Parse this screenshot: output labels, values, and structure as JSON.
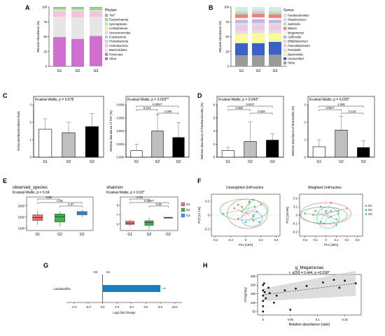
{
  "panels": {
    "A": {
      "letter": "A",
      "ylabel": "Relative Abundance (%)",
      "legend_title": "Phylum"
    },
    "B": {
      "letter": "B",
      "ylabel": "Relative Abundance (%)",
      "legend_title": "Genus"
    },
    "C": {
      "letter": "C"
    },
    "D": {
      "letter": "D"
    },
    "E": {
      "letter": "E"
    },
    "F": {
      "letter": "F",
      "left_title": "Unweighted UniFraction",
      "right_title": "Weighted UniFraction",
      "left_xlabel": "PC1 [16%]",
      "left_ylabel": "PC2 [12.1%]",
      "right_xlabel": "PC1 [35%]",
      "right_ylabel": "PC2 [18.9%]"
    },
    "G": {
      "letter": "G",
      "group_left": "G3",
      "group_right": "G1"
    },
    "H": {
      "letter": "H",
      "title": "g_Megamonas",
      "stat": "r_s[20] = 0.444, p =0.038*",
      "xlabel": "Relative abundance (ratio)",
      "ylabel": "CH4(g/day)"
    }
  },
  "chart_data": [
    {
      "id": "A",
      "type": "bar",
      "stacked": true,
      "categories": [
        "G1",
        "G2",
        "G3"
      ],
      "ylim": [
        0,
        100
      ],
      "yticks": [
        0,
        25,
        50,
        75,
        100
      ],
      "ylabel": "Relative Abundance (%)",
      "legend_title": "Phylum",
      "series": [
        {
          "name": "Other",
          "color": "#8c8c8c",
          "values": [
            0.3,
            0.3,
            0.3
          ]
        },
        {
          "name": "Firmicutes",
          "color": "#cf6fcf",
          "values": [
            49,
            46,
            51
          ]
        },
        {
          "name": "Bacteroidetes",
          "color": "#e6e6e6",
          "values": [
            34,
            36,
            32
          ]
        },
        {
          "name": "Actinobacteria",
          "color": "#fabfe3",
          "values": [
            8,
            9,
            7
          ]
        },
        {
          "name": "Proteobacteria",
          "color": "#d0d0d0",
          "values": [
            1.5,
            1.5,
            1.5
          ]
        },
        {
          "name": "Fusobacteria",
          "color": "#b0e0b0",
          "values": [
            1,
            1,
            1
          ]
        },
        {
          "name": "Verrucomicrobia",
          "color": "#f5d7ef",
          "values": [
            0.6,
            0.6,
            0.6
          ]
        },
        {
          "name": "Lentisphaerae",
          "color": "#fff0a0",
          "values": [
            0.6,
            0.6,
            0.6
          ]
        },
        {
          "name": "Synergistetes",
          "color": "#c4e8a0",
          "values": [
            0.5,
            0.5,
            0.5
          ]
        },
        {
          "name": "Euryarchaeota",
          "color": "#9ad29a",
          "values": [
            2.5,
            2.5,
            3.5
          ]
        },
        {
          "name": "TM7",
          "color": "#80c880",
          "values": [
            2,
            2,
            2
          ]
        }
      ]
    },
    {
      "id": "B",
      "type": "bar",
      "stacked": true,
      "categories": [
        "G1",
        "G2",
        "G3"
      ],
      "ylim": [
        0,
        100
      ],
      "yticks": [
        0,
        25,
        50,
        75,
        100
      ],
      "ylabel": "Relative Abundance (%)",
      "legend_title": "Genus",
      "series": [
        {
          "name": "Other",
          "color": "#9a9a9a",
          "values": [
            18,
            18,
            19
          ]
        },
        {
          "name": "Unclassified",
          "color": "#3c5fc8",
          "values": [
            20,
            20,
            21
          ]
        },
        {
          "name": "Bacteroides",
          "color": "#fafa9a",
          "values": [
            15,
            16,
            14
          ]
        },
        {
          "name": "Prevotella",
          "color": "#e0e0e0",
          "values": [
            5,
            5,
            5
          ]
        },
        {
          "name": "Faecalibacterium",
          "color": "#f0c8e8",
          "values": [
            9,
            8,
            8
          ]
        },
        {
          "name": "Bifidobacterium",
          "color": "#dcdcdc",
          "values": [
            4,
            4,
            4
          ]
        },
        {
          "name": "Collinsella",
          "color": "#c0b4e0",
          "values": [
            5,
            6,
            5
          ]
        },
        {
          "name": "Megamonas",
          "color": "#ffffff",
          "values": [
            3,
            3,
            3
          ]
        },
        {
          "name": "Blautia",
          "color": "#f08080",
          "values": [
            6,
            6,
            6
          ]
        },
        {
          "name": "Sutterella",
          "color": "#b4e0b4",
          "values": [
            4,
            4,
            4
          ]
        },
        {
          "name": "Streptococcus",
          "color": "#e8d0ff",
          "values": [
            3,
            3,
            3
          ]
        },
        {
          "name": "Parabacteroides",
          "color": "#d4f0d4",
          "values": [
            5,
            4,
            5
          ]
        }
      ]
    },
    {
      "id": "C1",
      "type": "bar",
      "test": "Kruskal-Wallis, p = 0.678",
      "ylabel": "Firmicutes/Bacteroidetes Ratio",
      "categories": [
        "G1",
        "G2",
        "G3"
      ],
      "values": [
        1.6,
        1.4,
        1.75
      ],
      "errors": [
        0.6,
        0.6,
        0.75
      ],
      "colors": [
        "#ffffff",
        "#bfbfbf",
        "#000000"
      ],
      "ylim": [
        0,
        3
      ],
      "yticks": [
        0,
        1,
        2,
        3
      ],
      "brackets": []
    },
    {
      "id": "C2",
      "type": "bar",
      "test": "Kruskal-Wallis, p = 0.003**",
      "ylabel": "Relative abundance of TM7 (%)",
      "categories": [
        "G1",
        "G2",
        "G3"
      ],
      "values": [
        0.001,
        0.004,
        0.003
      ],
      "errors": [
        0.001,
        0.0025,
        0.0023
      ],
      "colors": [
        "#ffffff",
        "#bfbfbf",
        "#000000"
      ],
      "ylim": [
        0,
        0.008
      ],
      "yticks": [
        0,
        0.002,
        0.004,
        0.006,
        0.008
      ],
      "brackets": [
        {
          "from": 0,
          "to": 2,
          "label": "0.005**"
        },
        {
          "from": 0,
          "to": 1,
          "label": "0.121"
        },
        {
          "from": 1,
          "to": 2,
          "label": "1.000"
        }
      ]
    },
    {
      "id": "D1",
      "type": "bar",
      "test": "Kruskal-Wallis, p = 0.043*",
      "ylabel": "Relative abundance of Parabacteroides (%)",
      "categories": [
        "G1",
        "G2",
        "G3"
      ],
      "values": [
        1,
        2.4,
        2.6
      ],
      "errors": [
        0.5,
        3.0,
        1.0
      ],
      "colors": [
        "#ffffff",
        "#bfbfbf",
        "#000000"
      ],
      "ylim": [
        0,
        8
      ],
      "yticks": [
        0,
        2,
        4,
        6,
        8
      ],
      "brackets": [
        {
          "from": 0,
          "to": 2,
          "label": "0.042*"
        },
        {
          "from": 0,
          "to": 1,
          "label": "0.356"
        },
        {
          "from": 1,
          "to": 2,
          "label": "0.529"
        }
      ]
    },
    {
      "id": "D2",
      "type": "bar",
      "test": "Kruskal-Wallis, p = 0.020*",
      "ylabel": "Relative abundance of Barnesiella (%)",
      "categories": [
        "G1",
        "G2",
        "G3"
      ],
      "values": [
        0.6,
        1.55,
        0.55
      ],
      "errors": [
        0.4,
        0.8,
        0.4
      ],
      "colors": [
        "#ffffff",
        "#bfbfbf",
        "#000000"
      ],
      "ylim": [
        0,
        3
      ],
      "yticks": [
        0,
        1,
        2,
        3
      ],
      "brackets": [
        {
          "from": 0,
          "to": 2,
          "label": "1.000"
        },
        {
          "from": 0,
          "to": 1,
          "label": "0.057*"
        },
        {
          "from": 1,
          "to": 2,
          "label": "0.142"
        }
      ]
    },
    {
      "id": "E1",
      "type": "box",
      "title": "observed_species",
      "test": "Kruskal-Wallis, p = 0.34",
      "categories": [
        "G1",
        "G2",
        "G3"
      ],
      "colors": [
        "#f26b6b",
        "#3cb44b",
        "#3c9be8"
      ],
      "boxes": [
        {
          "min": 1150,
          "q1": 1350,
          "median": 1480,
          "q3": 1600,
          "max": 1780
        },
        {
          "min": 1080,
          "q1": 1280,
          "median": 1520,
          "q3": 1640,
          "max": 1760
        },
        {
          "min": 1500,
          "q1": 1600,
          "median": 1680,
          "q3": 1750,
          "max": 1810
        }
      ],
      "ylim": [
        900,
        2150
      ],
      "yticks": [
        1000,
        1500,
        2000
      ],
      "brackets": [
        {
          "from": 0,
          "to": 1,
          "label": "0.89"
        },
        {
          "from": 0,
          "to": 2,
          "label": "0.18"
        },
        {
          "from": 1,
          "to": 2,
          "label": "0.27"
        }
      ]
    },
    {
      "id": "E2",
      "type": "box",
      "title": "shannon",
      "test": "Kruskal-Wallis, p = 0.03*",
      "categories": [
        "G1",
        "G2",
        "G3"
      ],
      "colors": [
        "#f26b6b",
        "#3cb44b",
        "#3c9be8"
      ],
      "boxes": [
        {
          "min": 5.8,
          "q1": 5.95,
          "median": 6.1,
          "q3": 6.3,
          "max": 6.45
        },
        {
          "min": 5.4,
          "q1": 5.85,
          "median": 6.15,
          "q3": 6.35,
          "max": 6.7
        },
        {
          "min": 6.6,
          "q1": 6.63,
          "median": 6.68,
          "q3": 6.72,
          "max": 6.75
        }
      ],
      "ylim": [
        5.3,
        8.3
      ],
      "yticks": [
        5,
        6,
        7,
        8
      ],
      "legend": [
        "G1",
        "G2",
        "G3"
      ],
      "brackets": [
        {
          "from": 0,
          "to": 1,
          "label": "0.76"
        },
        {
          "from": 0,
          "to": 2,
          "label": "0.008**"
        },
        {
          "from": 1,
          "to": 2,
          "label": "0.08"
        }
      ]
    },
    {
      "id": "F1",
      "type": "scatter",
      "title": "Unweighted UniFraction",
      "xlabel": "PC1 [16%]",
      "ylabel": "PC2 [12.1%]",
      "xlim": [
        -0.45,
        0.45
      ],
      "ylim": [
        -0.3,
        0.3
      ],
      "xticks": [
        -0.4,
        -0.2,
        0,
        0.2,
        0.4
      ],
      "yticks": [
        -0.2,
        0,
        0.2
      ],
      "groups": [
        {
          "name": "G1",
          "color": "#f26b6b",
          "centroid": [
            0.02,
            0.02
          ],
          "points": [
            [
              0.15,
              0.05
            ],
            [
              0.1,
              -0.08
            ],
            [
              -0.05,
              0.12
            ],
            [
              0.2,
              0.15
            ],
            [
              -0.1,
              -0.05
            ],
            [
              0.05,
              0.2
            ],
            [
              -0.15,
              0.1
            ]
          ]
        },
        {
          "name": "G2",
          "color": "#3cb44b",
          "centroid": [
            -0.02,
            0.08
          ],
          "points": [
            [
              -0.3,
              0.02
            ],
            [
              -0.1,
              0.15
            ],
            [
              0.05,
              0.18
            ],
            [
              0.12,
              0.12
            ],
            [
              -0.05,
              0.05
            ],
            [
              0.1,
              0.22
            ]
          ]
        },
        {
          "name": "G3",
          "color": "#3cb4d2",
          "centroid": [
            0.08,
            -0.05
          ],
          "points": [
            [
              0.18,
              -0.1
            ],
            [
              0.1,
              -0.02
            ],
            [
              0.0,
              -0.1
            ],
            [
              0.15,
              0.05
            ],
            [
              0.1,
              0.0
            ]
          ]
        }
      ]
    },
    {
      "id": "F2",
      "type": "scatter",
      "title": "Weighted UniFraction",
      "xlabel": "PC1 [35%]",
      "ylabel": "PC2 [18.9%]",
      "xlim": [
        -0.25,
        0.35
      ],
      "ylim": [
        -0.25,
        0.25
      ],
      "xticks": [
        -0.2,
        -0.1,
        0,
        0.1,
        0.2,
        0.3
      ],
      "yticks": [
        -0.2,
        -0.1,
        0,
        0.1,
        0.2
      ],
      "legend": [
        "G1",
        "G2",
        "G3"
      ],
      "groups": [
        {
          "name": "G1",
          "color": "#f26b6b",
          "centroid": [
            0.0,
            0.02
          ],
          "points": [
            [
              0.12,
              0.05
            ],
            [
              0.05,
              -0.02
            ],
            [
              -0.05,
              0.1
            ],
            [
              0.2,
              0.08
            ],
            [
              -0.12,
              0.0
            ],
            [
              0.05,
              0.15
            ]
          ]
        },
        {
          "name": "G2",
          "color": "#3cb44b",
          "centroid": [
            -0.02,
            0.0
          ],
          "points": [
            [
              -0.2,
              0.02
            ],
            [
              -0.1,
              0.05
            ],
            [
              0.05,
              0.05
            ],
            [
              0.1,
              -0.05
            ],
            [
              -0.05,
              -0.08
            ]
          ]
        },
        {
          "name": "G3",
          "color": "#3cb4d2",
          "centroid": [
            0.02,
            -0.03
          ],
          "points": [
            [
              0.1,
              -0.12
            ],
            [
              0.05,
              -0.02
            ],
            [
              -0.02,
              -0.1
            ],
            [
              0.12,
              0.02
            ],
            [
              0.0,
              0.05
            ]
          ]
        }
      ]
    },
    {
      "id": "G",
      "type": "bar",
      "orientation": "horizontal",
      "categories": [
        "Lactobacillus"
      ],
      "values": [
        8.0
      ],
      "color": "#1a7fc1",
      "xlabel": "Log2 fold change",
      "xlim": [
        -5,
        11
      ],
      "xticks": [
        -4.0,
        -2.0,
        0.0,
        2.0,
        4.0,
        6.0,
        8.0,
        10.0
      ],
      "annotation": "***",
      "group_left": "G3",
      "group_right": "G1"
    },
    {
      "id": "H",
      "type": "scatter",
      "title": "g_Megamonas",
      "stat": "r_s[20] = 0.444, p =0.038*",
      "xlabel": "Relative abundance (ratio)",
      "ylabel": "CH4(g/day)",
      "xlim": [
        -0.01,
        0.18
      ],
      "ylim": [
        30,
        260
      ],
      "xticks": [
        0,
        0.05,
        0.1,
        0.15
      ],
      "yticks": [
        50,
        100,
        150,
        200,
        250
      ],
      "points": [
        [
          0.0,
          200
        ],
        [
          0.0,
          170
        ],
        [
          0.0,
          140
        ],
        [
          0.0,
          110
        ],
        [
          0.0,
          80
        ],
        [
          0.0,
          50
        ],
        [
          0.002,
          210
        ],
        [
          0.003,
          160
        ],
        [
          0.005,
          125
        ],
        [
          0.01,
          185
        ],
        [
          0.012,
          155
        ],
        [
          0.02,
          100
        ],
        [
          0.025,
          140
        ],
        [
          0.04,
          170
        ],
        [
          0.05,
          60
        ],
        [
          0.06,
          180
        ],
        [
          0.08,
          195
        ],
        [
          0.11,
          215
        ],
        [
          0.14,
          185
        ],
        [
          0.17,
          210
        ],
        [
          0.15,
          225
        ],
        [
          0.13,
          230
        ]
      ],
      "fit": {
        "x0": 0,
        "y0": 145,
        "x1": 0.17,
        "y1": 210
      }
    }
  ]
}
